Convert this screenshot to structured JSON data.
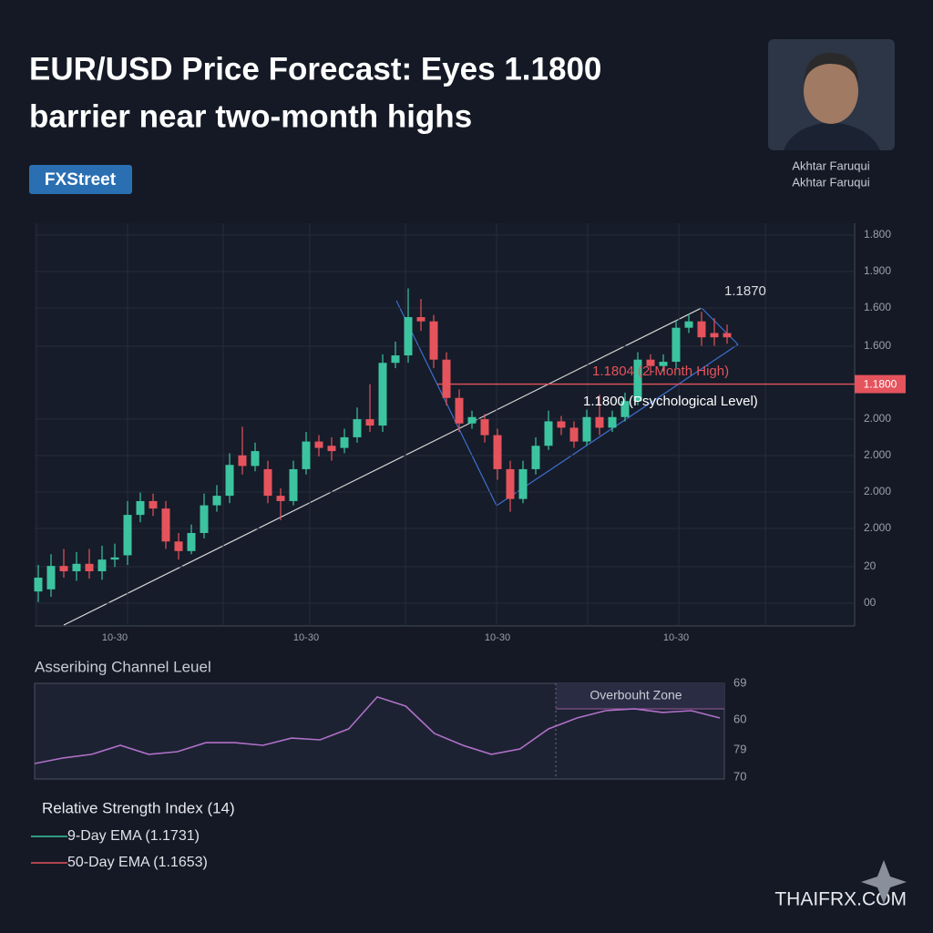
{
  "header": {
    "title_lines": [
      "EUR/USD Price Forecast: Eyes 1.1800",
      "barrier near two-month highs"
    ],
    "brand": "FXStreet",
    "author": [
      "Akhtar Faruqui",
      "Akhtar Faruqui"
    ]
  },
  "chart_data": [
    {
      "type": "candlestick",
      "up_color": "#3cc4a0",
      "down_color": "#e5535c",
      "categories": [
        null,
        null,
        null,
        null,
        null,
        null,
        "10-30",
        null,
        null,
        null,
        null,
        null,
        null,
        null,
        null,
        null,
        null,
        null,
        null,
        null,
        null,
        "10-30",
        null,
        null,
        null,
        null,
        null,
        null,
        null,
        null,
        null,
        null,
        null,
        null,
        null,
        null,
        "10-30",
        null,
        null,
        null,
        null,
        null,
        null,
        null,
        null,
        null,
        null,
        null,
        null,
        null,
        "10-30",
        null,
        null,
        null,
        null
      ],
      "series": {
        "open": [
          1.1605,
          1.1607,
          1.1629,
          1.1624,
          1.1631,
          1.1624,
          1.1635,
          1.1639,
          1.1677,
          1.169,
          1.1683,
          1.1652,
          1.1643,
          1.166,
          1.1686,
          1.1695,
          1.1733,
          1.1723,
          1.172,
          1.1695,
          1.169,
          1.172,
          1.1746,
          1.1742,
          1.174,
          1.175,
          1.1767,
          1.1761,
          1.182,
          1.1827,
          1.1863,
          1.1859,
          1.1823,
          1.1787,
          1.1763,
          1.1767,
          1.1752,
          1.172,
          1.1692,
          1.172,
          1.1742,
          1.1765,
          1.1759,
          1.1746,
          1.1769,
          1.1759,
          1.1769,
          1.1784,
          1.1823,
          1.1817,
          1.1821,
          1.1853,
          1.1859,
          1.1848,
          1.1848
        ],
        "high": [
          1.163,
          1.164,
          1.1645,
          1.1642,
          1.1645,
          1.1648,
          1.165,
          1.169,
          1.1698,
          1.1697,
          1.169,
          1.166,
          1.1668,
          1.1697,
          1.1705,
          1.1735,
          1.176,
          1.1745,
          1.1728,
          1.1702,
          1.1728,
          1.1755,
          1.1752,
          1.175,
          1.1758,
          1.1778,
          1.18,
          1.1828,
          1.184,
          1.189,
          1.188,
          1.1865,
          1.183,
          1.1795,
          1.1775,
          1.1772,
          1.1758,
          1.1728,
          1.1728,
          1.175,
          1.1775,
          1.177,
          1.1765,
          1.1776,
          1.179,
          1.1775,
          1.1792,
          1.183,
          1.1828,
          1.1828,
          1.186,
          1.1866,
          1.1868,
          1.1862,
          1.1856
        ],
        "low": [
          1.1595,
          1.16,
          1.1618,
          1.1615,
          1.1617,
          1.1616,
          1.1628,
          1.163,
          1.167,
          1.1676,
          1.1645,
          1.1635,
          1.164,
          1.1655,
          1.168,
          1.1688,
          1.1715,
          1.1718,
          1.1688,
          1.1672,
          1.1686,
          1.1715,
          1.1732,
          1.1728,
          1.1735,
          1.1745,
          1.1755,
          1.1755,
          1.1815,
          1.182,
          1.185,
          1.1815,
          1.178,
          1.1755,
          1.1758,
          1.1745,
          1.171,
          1.168,
          1.1688,
          1.1715,
          1.1738,
          1.1752,
          1.174,
          1.1742,
          1.1752,
          1.1755,
          1.1765,
          1.178,
          1.1808,
          1.1812,
          1.1815,
          1.1848,
          1.1836,
          1.1836,
          1.1838
        ],
        "close": [
          1.1618,
          1.1629,
          1.1624,
          1.1631,
          1.1624,
          1.1635,
          1.1637,
          1.1677,
          1.169,
          1.1683,
          1.1652,
          1.1643,
          1.166,
          1.1686,
          1.1695,
          1.1724,
          1.1723,
          1.1737,
          1.1695,
          1.169,
          1.172,
          1.1746,
          1.174,
          1.1737,
          1.175,
          1.1767,
          1.1761,
          1.182,
          1.1827,
          1.1863,
          1.1859,
          1.1823,
          1.1787,
          1.1763,
          1.1769,
          1.1752,
          1.172,
          1.1692,
          1.172,
          1.1742,
          1.1765,
          1.1759,
          1.1746,
          1.1769,
          1.1759,
          1.1769,
          1.1784,
          1.1823,
          1.1817,
          1.1821,
          1.1853,
          1.1859,
          1.1844,
          1.1844,
          1.1844
        ]
      },
      "ylim": [
        1.157,
        1.1947
      ],
      "y_axis_labels": [
        "1.800",
        "1.900",
        "1.600",
        "1.600",
        "2.000",
        "2.000",
        "2.000",
        "2.000",
        "20",
        "00"
      ],
      "levels": [
        {
          "value": 1.18,
          "label": "1.1800",
          "color": "#e5535c"
        }
      ],
      "annotations": [
        "1.1870",
        "1.1804 (2-Month High)",
        "1.1800 (Psychological Level)"
      ]
    },
    {
      "type": "line",
      "title": "Asseribing Channel Leuel",
      "color": "#b070c8",
      "ylim": [
        30,
        80
      ],
      "values": [
        38.1,
        41,
        42.9,
        47.6,
        42.9,
        44.3,
        49,
        49,
        47.6,
        51.4,
        50.5,
        56.2,
        72.9,
        68.1,
        53.8,
        47.6,
        42.9,
        45.7,
        56.2,
        61.9,
        65.7,
        66.7,
        64.8,
        65.7,
        61.9
      ],
      "y_axis_labels": [
        "69",
        "60",
        "79",
        "70"
      ],
      "zone_label": "Overbouht Zone"
    }
  ],
  "indicator_legend": {
    "title": "Relative Strength Index (14)",
    "items": [
      {
        "label": "9-Day EMA (1.1731)",
        "color": "#3cc4a0"
      },
      {
        "label": "50-Day EMA (1.1653)",
        "color": "#e5535c"
      }
    ]
  },
  "watermark": "THAIFRX.COM"
}
